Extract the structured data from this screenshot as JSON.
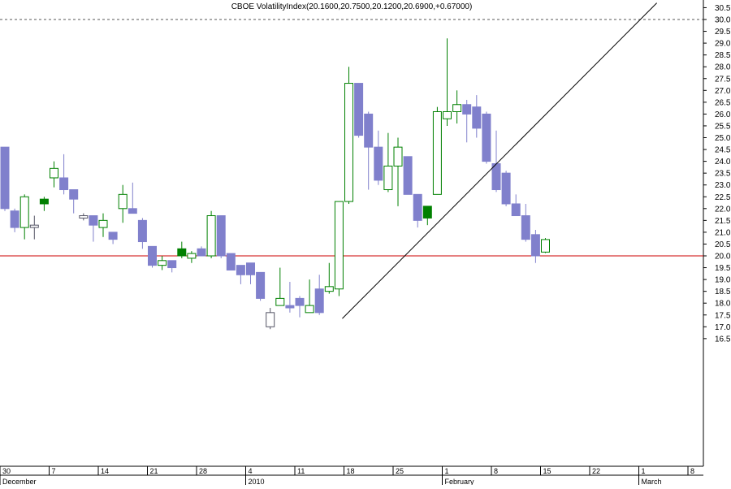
{
  "chart_data": {
    "type": "candlestick",
    "title": "CBOE VolatilityIndex(20.1600,20.7500,20.1200,20.6900,+0.67000)",
    "ylim": [
      16.0,
      30.7
    ],
    "y_ticks": [
      16.5,
      17.0,
      17.5,
      18.0,
      18.5,
      19.0,
      19.5,
      20.0,
      20.5,
      21.0,
      21.5,
      22.0,
      22.5,
      23.0,
      23.5,
      24.0,
      24.5,
      25.0,
      25.5,
      26.0,
      26.5,
      27.0,
      27.5,
      28.0,
      28.5,
      29.0,
      29.5,
      30.0,
      30.5
    ],
    "y_tick_labels": [
      "16.5",
      "17.0",
      "17.5",
      "18.0",
      "18.5",
      "19.0",
      "19.5",
      "20.0",
      "20.5",
      "21.0",
      "21.5",
      "22.0",
      "22.5",
      "23.0",
      "23.5",
      "24.0",
      "24.5",
      "25.0",
      "25.5",
      "26.0",
      "26.5",
      "27.0",
      "27.5",
      "28.0",
      "28.5",
      "29.0",
      "29.5",
      "30.0",
      "30.5"
    ],
    "x_day_ticks": [
      {
        "label": "30",
        "slot": 0
      },
      {
        "label": "7",
        "slot": 5
      },
      {
        "label": "14",
        "slot": 10
      },
      {
        "label": "21",
        "slot": 15
      },
      {
        "label": "28",
        "slot": 20
      },
      {
        "label": "4",
        "slot": 25
      },
      {
        "label": "11",
        "slot": 30
      },
      {
        "label": "18",
        "slot": 35
      },
      {
        "label": "25",
        "slot": 40
      },
      {
        "label": "1",
        "slot": 45
      },
      {
        "label": "8",
        "slot": 50
      },
      {
        "label": "15",
        "slot": 55
      },
      {
        "label": "22",
        "slot": 60
      },
      {
        "label": "1",
        "slot": 65
      },
      {
        "label": "8",
        "slot": 70
      }
    ],
    "x_month_labels": [
      {
        "label": "December",
        "slot": 0
      },
      {
        "label": "2010",
        "slot": 25
      },
      {
        "label": "February",
        "slot": 45
      },
      {
        "label": "March",
        "slot": 65
      }
    ],
    "reference_lines": [
      {
        "value": 30.0,
        "style": "dashed",
        "color": "#555555"
      },
      {
        "value": 20.0,
        "style": "solid",
        "color": "#cc0000"
      }
    ],
    "trendline": {
      "from": {
        "slot": 34.5,
        "value": 17.35
      },
      "to": {
        "slot": 66.5,
        "value": 30.7
      }
    },
    "colors": {
      "down": "#8080cc",
      "up_outline": "#008000",
      "up_solid": "#008000",
      "hollow_outline": "#555566"
    },
    "candles": [
      {
        "slot": 0,
        "open": 24.6,
        "high": 24.6,
        "low": 21.9,
        "close": 22.0,
        "style": "down"
      },
      {
        "slot": 1,
        "open": 21.9,
        "high": 22.0,
        "low": 21.0,
        "close": 21.2,
        "style": "down"
      },
      {
        "slot": 2,
        "open": 21.2,
        "high": 22.6,
        "low": 20.7,
        "close": 22.5,
        "style": "up"
      },
      {
        "slot": 3,
        "open": 21.2,
        "high": 21.7,
        "low": 20.7,
        "close": 21.3,
        "style": "hollow"
      },
      {
        "slot": 4,
        "open": 22.2,
        "high": 22.5,
        "low": 21.9,
        "close": 22.4,
        "style": "up_solid"
      },
      {
        "slot": 5,
        "open": 23.3,
        "high": 24.0,
        "low": 22.9,
        "close": 23.7,
        "style": "up"
      },
      {
        "slot": 6,
        "open": 23.3,
        "high": 24.3,
        "low": 22.6,
        "close": 22.8,
        "style": "down"
      },
      {
        "slot": 7,
        "open": 22.8,
        "high": 22.8,
        "low": 21.8,
        "close": 22.4,
        "style": "down"
      },
      {
        "slot": 8,
        "open": 21.7,
        "high": 21.8,
        "low": 21.5,
        "close": 21.6,
        "style": "hollow"
      },
      {
        "slot": 9,
        "open": 21.7,
        "high": 21.7,
        "low": 20.6,
        "close": 21.3,
        "style": "down"
      },
      {
        "slot": 10,
        "open": 21.2,
        "high": 21.8,
        "low": 20.8,
        "close": 21.5,
        "style": "up"
      },
      {
        "slot": 11,
        "open": 21.0,
        "high": 21.0,
        "low": 20.5,
        "close": 20.7,
        "style": "down"
      },
      {
        "slot": 12,
        "open": 22.0,
        "high": 23.0,
        "low": 21.4,
        "close": 22.6,
        "style": "up"
      },
      {
        "slot": 13,
        "open": 22.0,
        "high": 23.1,
        "low": 21.8,
        "close": 21.8,
        "style": "down"
      },
      {
        "slot": 14,
        "open": 21.5,
        "high": 21.6,
        "low": 20.3,
        "close": 20.6,
        "style": "down"
      },
      {
        "slot": 15,
        "open": 20.4,
        "high": 20.4,
        "low": 19.5,
        "close": 19.6,
        "style": "down"
      },
      {
        "slot": 16,
        "open": 19.6,
        "high": 20.0,
        "low": 19.4,
        "close": 19.8,
        "style": "up"
      },
      {
        "slot": 17,
        "open": 19.8,
        "high": 19.8,
        "low": 19.3,
        "close": 19.5,
        "style": "down"
      },
      {
        "slot": 18,
        "open": 20.0,
        "high": 20.6,
        "low": 19.9,
        "close": 20.3,
        "style": "up_solid"
      },
      {
        "slot": 19,
        "open": 19.9,
        "high": 20.2,
        "low": 19.7,
        "close": 20.1,
        "style": "up"
      },
      {
        "slot": 20,
        "open": 20.3,
        "high": 20.4,
        "low": 20.0,
        "close": 20.0,
        "style": "down"
      },
      {
        "slot": 21,
        "open": 20.0,
        "high": 21.9,
        "low": 19.9,
        "close": 21.7,
        "style": "up"
      },
      {
        "slot": 22,
        "open": 21.7,
        "high": 21.7,
        "low": 19.9,
        "close": 20.0,
        "style": "down"
      },
      {
        "slot": 23,
        "open": 20.1,
        "high": 20.1,
        "low": 19.4,
        "close": 19.4,
        "style": "down"
      },
      {
        "slot": 24,
        "open": 19.6,
        "high": 19.6,
        "low": 18.8,
        "close": 19.2,
        "style": "down"
      },
      {
        "slot": 25,
        "open": 19.7,
        "high": 19.7,
        "low": 18.8,
        "close": 19.2,
        "style": "down"
      },
      {
        "slot": 26,
        "open": 19.3,
        "high": 19.3,
        "low": 18.1,
        "close": 18.2,
        "style": "down"
      },
      {
        "slot": 27,
        "open": 17.0,
        "high": 17.8,
        "low": 16.9,
        "close": 17.6,
        "style": "hollow"
      },
      {
        "slot": 28,
        "open": 17.9,
        "high": 19.5,
        "low": 17.9,
        "close": 18.2,
        "style": "up"
      },
      {
        "slot": 29,
        "open": 17.9,
        "high": 18.9,
        "low": 17.6,
        "close": 17.8,
        "style": "down"
      },
      {
        "slot": 30,
        "open": 17.9,
        "high": 18.3,
        "low": 17.4,
        "close": 18.2,
        "style": "down"
      },
      {
        "slot": 31,
        "open": 17.6,
        "high": 19.0,
        "low": 17.6,
        "close": 17.9,
        "style": "up"
      },
      {
        "slot": 32,
        "open": 17.6,
        "high": 19.2,
        "low": 17.5,
        "close": 18.6,
        "style": "down"
      },
      {
        "slot": 33,
        "open": 18.5,
        "high": 19.7,
        "low": 18.4,
        "close": 18.7,
        "style": "up"
      },
      {
        "slot": 34,
        "open": 18.6,
        "high": 22.3,
        "low": 18.3,
        "close": 22.3,
        "style": "up"
      },
      {
        "slot": 35,
        "open": 22.3,
        "high": 28.0,
        "low": 22.2,
        "close": 27.3,
        "style": "up"
      },
      {
        "slot": 36,
        "open": 27.3,
        "high": 27.3,
        "low": 25.0,
        "close": 25.1,
        "style": "down"
      },
      {
        "slot": 37,
        "open": 26.0,
        "high": 26.1,
        "low": 22.8,
        "close": 24.6,
        "style": "down"
      },
      {
        "slot": 38,
        "open": 24.6,
        "high": 25.3,
        "low": 23.0,
        "close": 23.2,
        "style": "down"
      },
      {
        "slot": 39,
        "open": 22.8,
        "high": 25.2,
        "low": 22.7,
        "close": 23.8,
        "style": "up"
      },
      {
        "slot": 40,
        "open": 23.8,
        "high": 25.0,
        "low": 22.1,
        "close": 24.6,
        "style": "up"
      },
      {
        "slot": 41,
        "open": 24.2,
        "high": 24.2,
        "low": 22.6,
        "close": 22.6,
        "style": "down"
      },
      {
        "slot": 42,
        "open": 22.6,
        "high": 22.6,
        "low": 21.2,
        "close": 21.5,
        "style": "down"
      },
      {
        "slot": 43,
        "open": 21.6,
        "high": 22.1,
        "low": 21.3,
        "close": 22.1,
        "style": "up_solid"
      },
      {
        "slot": 44,
        "open": 22.6,
        "high": 26.3,
        "low": 22.6,
        "close": 26.1,
        "style": "up"
      },
      {
        "slot": 45,
        "open": 25.8,
        "high": 29.2,
        "low": 25.5,
        "close": 26.1,
        "style": "up"
      },
      {
        "slot": 46,
        "open": 26.1,
        "high": 27.0,
        "low": 25.6,
        "close": 26.4,
        "style": "up"
      },
      {
        "slot": 47,
        "open": 26.4,
        "high": 26.6,
        "low": 24.8,
        "close": 26.0,
        "style": "down"
      },
      {
        "slot": 48,
        "open": 26.3,
        "high": 26.8,
        "low": 25.0,
        "close": 25.4,
        "style": "down"
      },
      {
        "slot": 49,
        "open": 26.0,
        "high": 26.1,
        "low": 23.9,
        "close": 24.0,
        "style": "down"
      },
      {
        "slot": 50,
        "open": 23.9,
        "high": 25.3,
        "low": 22.7,
        "close": 22.8,
        "style": "down"
      },
      {
        "slot": 51,
        "open": 23.5,
        "high": 23.6,
        "low": 22.1,
        "close": 22.2,
        "style": "down"
      },
      {
        "slot": 52,
        "open": 22.2,
        "high": 22.6,
        "low": 21.7,
        "close": 21.7,
        "style": "down"
      },
      {
        "slot": 53,
        "open": 21.7,
        "high": 22.2,
        "low": 20.6,
        "close": 20.7,
        "style": "down"
      },
      {
        "slot": 54,
        "open": 20.9,
        "high": 21.1,
        "low": 19.7,
        "close": 20.0,
        "style": "down"
      },
      {
        "slot": 55,
        "open": 20.16,
        "high": 20.75,
        "low": 20.12,
        "close": 20.69,
        "style": "up"
      }
    ]
  }
}
